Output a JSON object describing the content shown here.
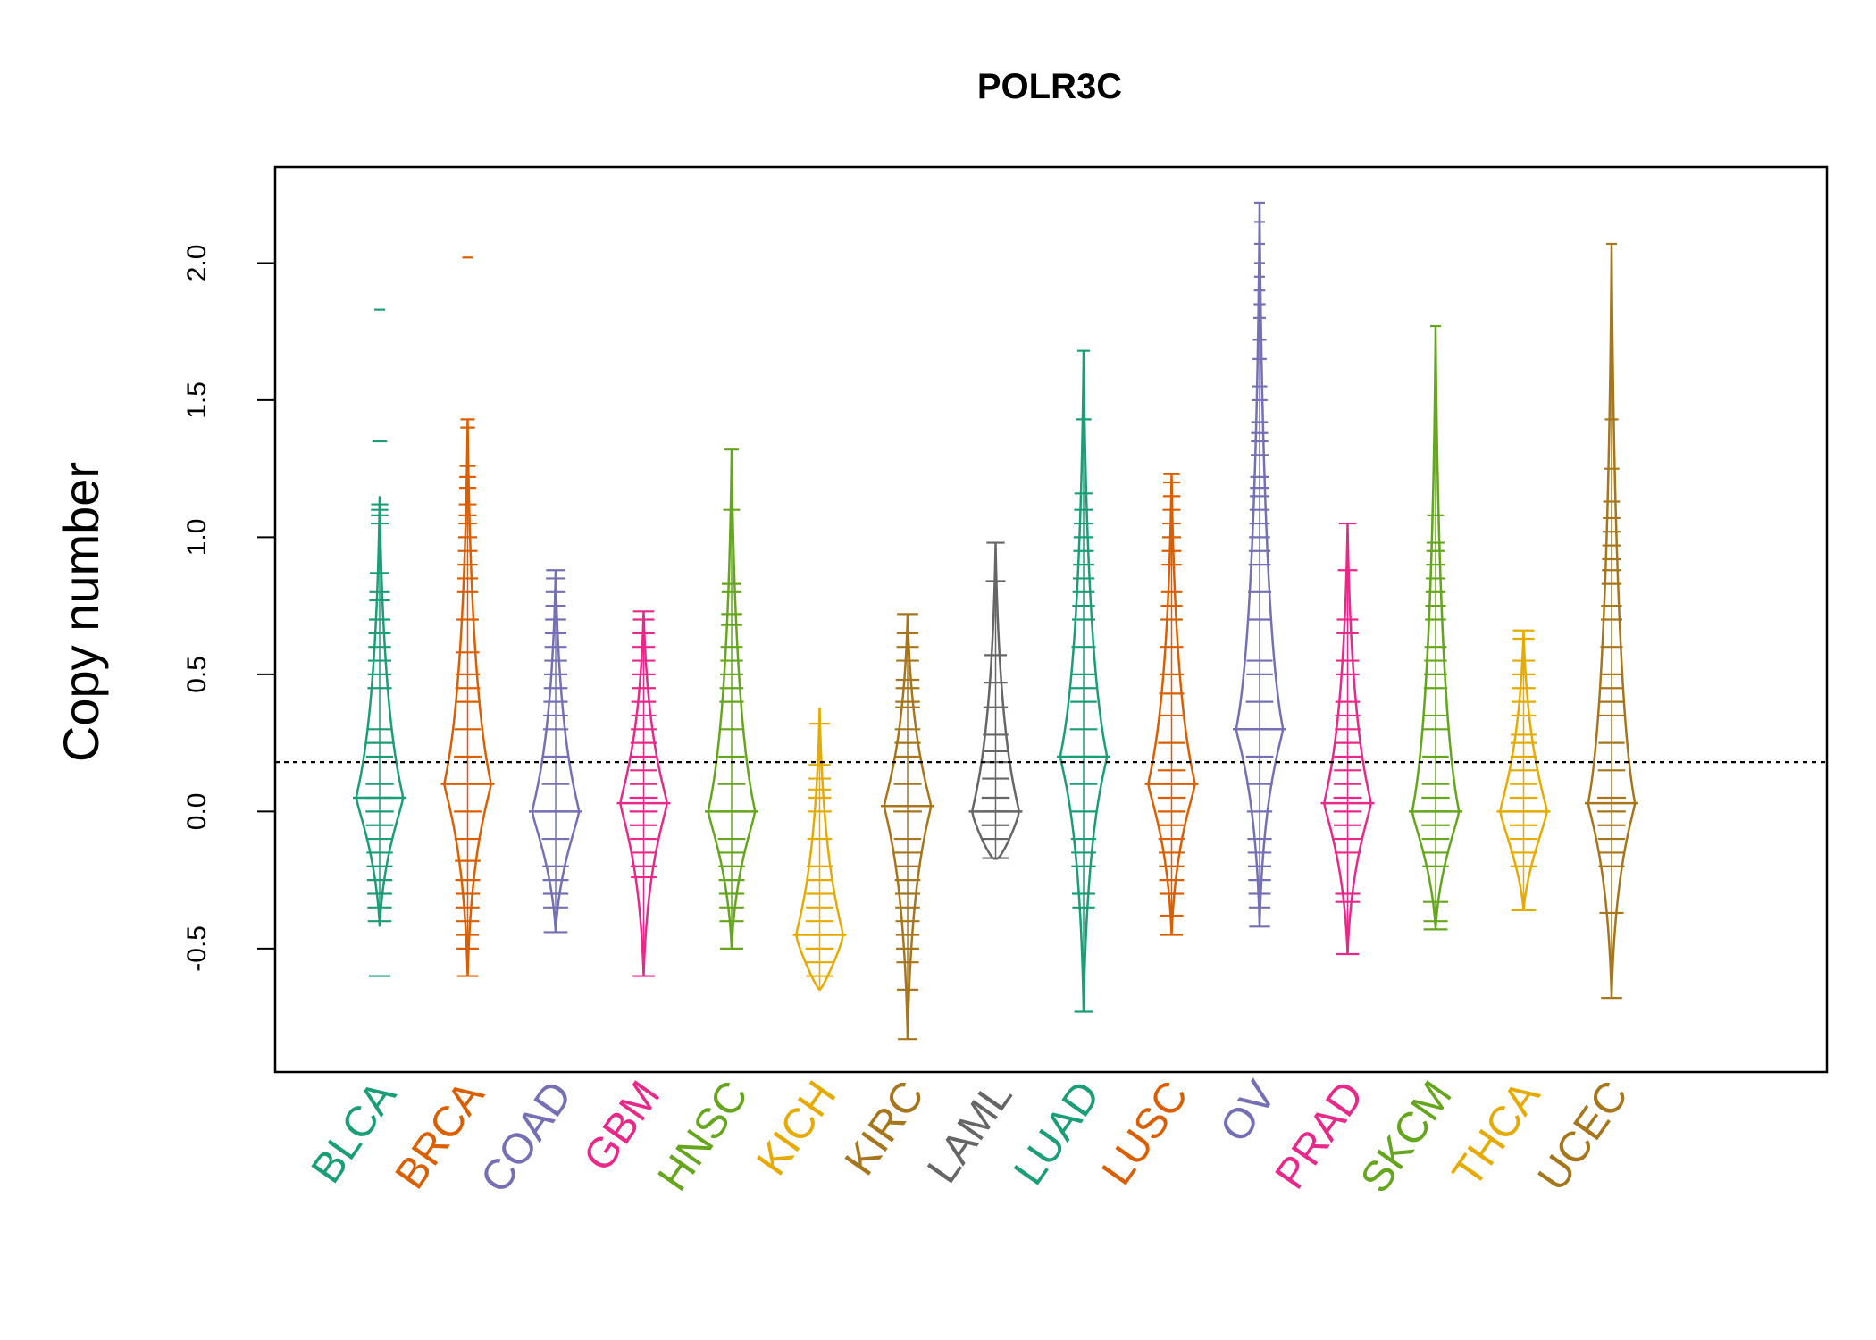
{
  "chart_data": {
    "type": "beanplot",
    "title": "POLR3C",
    "xlabel": "",
    "ylabel": "Copy number",
    "ylim": [
      -0.95,
      2.35
    ],
    "yticks": [
      -0.5,
      0.0,
      0.5,
      1.0,
      1.5,
      2.0
    ],
    "ytick_labels": [
      "-0.5",
      "0.0",
      "0.5",
      "1.0",
      "1.5",
      "2.0"
    ],
    "reference_line": 0.18,
    "grid": false,
    "legend": "none",
    "categories": [
      "BLCA",
      "BRCA",
      "COAD",
      "GBM",
      "HNSC",
      "KICH",
      "KIRC",
      "LAML",
      "LUAD",
      "LUSC",
      "OV",
      "PRAD",
      "SKCM",
      "THCA",
      "UCEC"
    ],
    "colors": [
      "#1b9e77",
      "#d95f02",
      "#7570b3",
      "#e7298a",
      "#66a61e",
      "#e6ab02",
      "#a6761d",
      "#666666",
      "#1b9e77",
      "#d95f02",
      "#7570b3",
      "#e7298a",
      "#66a61e",
      "#e6ab02",
      "#a6761d"
    ],
    "series": [
      {
        "name": "BLCA",
        "center": 0.05,
        "low": -0.42,
        "high": 1.15,
        "points": [
          1.83,
          1.35,
          1.12,
          1.1,
          1.08,
          1.05,
          0.87,
          0.8,
          0.77,
          0.7,
          0.65,
          0.6,
          0.55,
          0.5,
          0.45,
          0.3,
          0.25,
          0.2,
          0.1,
          0.05,
          0.0,
          -0.05,
          -0.1,
          -0.15,
          -0.2,
          -0.25,
          -0.3,
          -0.35,
          -0.4,
          -0.6
        ]
      },
      {
        "name": "BRCA",
        "center": 0.1,
        "low": -0.6,
        "high": 1.43,
        "points": [
          2.02,
          1.43,
          1.4,
          1.26,
          1.22,
          1.18,
          1.12,
          1.08,
          1.05,
          1.0,
          0.95,
          0.9,
          0.85,
          0.8,
          0.7,
          0.58,
          0.5,
          0.45,
          0.4,
          0.3,
          0.2,
          0.0,
          -0.1,
          -0.18,
          -0.25,
          -0.3,
          -0.35,
          -0.4,
          -0.45,
          -0.5,
          -0.6
        ]
      },
      {
        "name": "COAD",
        "center": 0.0,
        "low": -0.44,
        "high": 0.88,
        "points": [
          0.88,
          0.85,
          0.8,
          0.75,
          0.7,
          0.65,
          0.6,
          0.55,
          0.5,
          0.45,
          0.4,
          0.35,
          0.3,
          0.2,
          0.1,
          0.0,
          -0.1,
          -0.2,
          -0.25,
          -0.3,
          -0.35,
          -0.44
        ]
      },
      {
        "name": "GBM",
        "center": 0.03,
        "low": -0.6,
        "high": 0.73,
        "points": [
          0.73,
          0.7,
          0.65,
          0.6,
          0.55,
          0.5,
          0.45,
          0.4,
          0.35,
          0.3,
          0.25,
          0.2,
          0.15,
          0.1,
          0.05,
          0.0,
          -0.05,
          -0.1,
          -0.15,
          -0.2,
          -0.24,
          -0.6
        ]
      },
      {
        "name": "HNSC",
        "center": 0.0,
        "low": -0.5,
        "high": 1.32,
        "points": [
          1.32,
          1.1,
          0.83,
          0.8,
          0.72,
          0.68,
          0.6,
          0.55,
          0.5,
          0.45,
          0.4,
          0.3,
          0.2,
          0.1,
          0.0,
          -0.1,
          -0.15,
          -0.2,
          -0.25,
          -0.3,
          -0.35,
          -0.4,
          -0.5
        ]
      },
      {
        "name": "KICH",
        "center": -0.45,
        "low": -0.65,
        "high": 0.38,
        "points": [
          0.32,
          0.17,
          0.12,
          0.08,
          0.05,
          0.0,
          -0.1,
          -0.2,
          -0.25,
          -0.3,
          -0.35,
          -0.4,
          -0.45,
          -0.5,
          -0.55,
          -0.6
        ]
      },
      {
        "name": "KIRC",
        "center": 0.02,
        "low": -0.83,
        "high": 0.72,
        "points": [
          0.72,
          0.65,
          0.6,
          0.55,
          0.48,
          0.45,
          0.4,
          0.38,
          0.3,
          0.25,
          0.2,
          0.1,
          0.0,
          -0.1,
          -0.15,
          -0.2,
          -0.25,
          -0.3,
          -0.35,
          -0.4,
          -0.45,
          -0.5,
          -0.55,
          -0.65,
          -0.83
        ]
      },
      {
        "name": "LAML",
        "center": 0.0,
        "low": -0.17,
        "high": 0.98,
        "points": [
          0.98,
          0.84,
          0.57,
          0.47,
          0.38,
          0.28,
          0.22,
          0.18,
          0.12,
          0.05,
          0.0,
          -0.05,
          -0.1,
          -0.17
        ]
      },
      {
        "name": "LUAD",
        "center": 0.2,
        "low": -0.73,
        "high": 1.68,
        "points": [
          1.68,
          1.43,
          1.16,
          1.1,
          1.05,
          1.0,
          0.95,
          0.9,
          0.85,
          0.8,
          0.75,
          0.7,
          0.6,
          0.5,
          0.45,
          0.4,
          0.3,
          0.2,
          0.1,
          0.0,
          -0.1,
          -0.15,
          -0.2,
          -0.3,
          -0.35,
          -0.73
        ]
      },
      {
        "name": "LUSC",
        "center": 0.1,
        "low": -0.45,
        "high": 1.23,
        "points": [
          1.23,
          1.2,
          1.15,
          1.1,
          1.05,
          1.0,
          0.95,
          0.9,
          0.8,
          0.75,
          0.7,
          0.6,
          0.5,
          0.43,
          0.35,
          0.25,
          0.15,
          0.05,
          0.0,
          -0.05,
          -0.1,
          -0.15,
          -0.2,
          -0.25,
          -0.3,
          -0.38,
          -0.45
        ]
      },
      {
        "name": "OV",
        "center": 0.3,
        "low": -0.42,
        "high": 2.22,
        "points": [
          2.22,
          2.15,
          2.07,
          2.0,
          1.95,
          1.9,
          1.85,
          1.8,
          1.72,
          1.65,
          1.55,
          1.5,
          1.42,
          1.38,
          1.35,
          1.3,
          1.22,
          1.18,
          1.15,
          1.1,
          1.05,
          1.0,
          0.95,
          0.9,
          0.8,
          0.7,
          0.55,
          0.5,
          0.4,
          0.3,
          0.2,
          0.1,
          0.0,
          -0.1,
          -0.15,
          -0.2,
          -0.25,
          -0.3,
          -0.35,
          -0.42
        ]
      },
      {
        "name": "PRAD",
        "center": 0.03,
        "low": -0.52,
        "high": 1.05,
        "points": [
          1.05,
          0.88,
          0.7,
          0.65,
          0.55,
          0.5,
          0.4,
          0.35,
          0.3,
          0.25,
          0.2,
          0.15,
          0.1,
          0.05,
          0.0,
          -0.05,
          -0.1,
          -0.15,
          -0.3,
          -0.33,
          -0.52
        ]
      },
      {
        "name": "SKCM",
        "center": 0.0,
        "low": -0.43,
        "high": 1.77,
        "points": [
          1.77,
          1.08,
          0.98,
          0.95,
          0.9,
          0.85,
          0.8,
          0.75,
          0.7,
          0.6,
          0.55,
          0.5,
          0.45,
          0.35,
          0.3,
          0.2,
          0.1,
          0.05,
          0.0,
          -0.05,
          -0.1,
          -0.15,
          -0.2,
          -0.33,
          -0.4,
          -0.43
        ]
      },
      {
        "name": "THCA",
        "center": 0.0,
        "low": -0.36,
        "high": 0.66,
        "points": [
          0.66,
          0.63,
          0.55,
          0.5,
          0.45,
          0.4,
          0.35,
          0.28,
          0.25,
          0.2,
          0.15,
          0.1,
          0.05,
          0.0,
          -0.05,
          -0.1,
          -0.15,
          -0.2,
          -0.36
        ]
      },
      {
        "name": "UCEC",
        "center": 0.03,
        "low": -0.68,
        "high": 2.07,
        "points": [
          2.07,
          1.43,
          1.25,
          1.13,
          1.07,
          1.02,
          0.97,
          0.92,
          0.88,
          0.83,
          0.75,
          0.7,
          0.6,
          0.5,
          0.45,
          0.4,
          0.35,
          0.25,
          0.15,
          0.05,
          0.0,
          -0.05,
          -0.1,
          -0.15,
          -0.2,
          -0.37,
          -0.68
        ]
      }
    ]
  }
}
